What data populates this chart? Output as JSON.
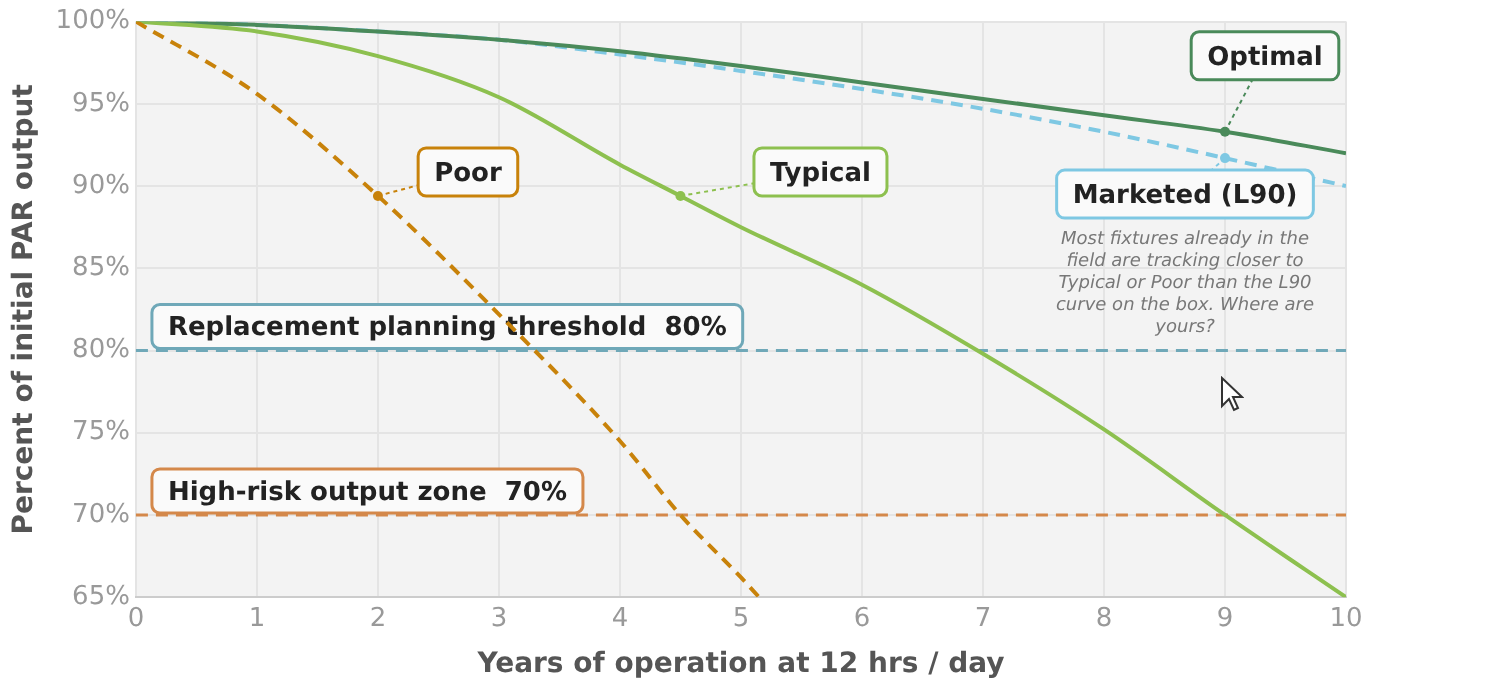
{
  "chart_data": {
    "type": "line",
    "xlabel": "Years of operation at 12 hrs / day",
    "ylabel": "Percent of initial PAR output",
    "xlim": [
      0,
      10
    ],
    "xticks": [
      0,
      1,
      2,
      3,
      4,
      5,
      6,
      7,
      8,
      9,
      10
    ],
    "ylim": [
      65,
      100
    ],
    "yticks": [
      {
        "value": 65,
        "label": "65%"
      },
      {
        "value": 70,
        "label": "70%"
      },
      {
        "value": 75,
        "label": "75%"
      },
      {
        "value": 80,
        "label": "80%"
      },
      {
        "value": 85,
        "label": "85%"
      },
      {
        "value": 90,
        "label": "90%"
      },
      {
        "value": 95,
        "label": "95%"
      },
      {
        "value": 100,
        "label": "100%"
      }
    ],
    "grid": true,
    "legend": false,
    "series": [
      {
        "color": "#c8820a",
        "line_style": "dashed",
        "x": [
          0,
          1,
          2,
          3,
          4,
          4.5,
          5,
          5.15
        ],
        "values": [
          100,
          95.6,
          89.4,
          82.2,
          74.5,
          70,
          66.2,
          65
        ]
      },
      {
        "color": "#8dc04f",
        "line_style": "solid",
        "x": [
          0,
          1,
          2,
          3,
          4,
          4.5,
          5,
          6,
          7,
          8,
          9,
          10
        ],
        "values": [
          100,
          99.4,
          97.9,
          95.4,
          91.3,
          89.4,
          87.5,
          84,
          79.8,
          75.2,
          70,
          65
        ]
      },
      {
        "color": "#4a8a5a",
        "line_style": "solid",
        "x": [
          0,
          1,
          2,
          3,
          4,
          5,
          6,
          7,
          8,
          9,
          10
        ],
        "values": [
          100,
          99.8,
          99.4,
          98.9,
          98.2,
          97.3,
          96.3,
          95.3,
          94.3,
          93.3,
          92
        ]
      },
      {
        "color": "#7ec8e3",
        "line_style": "dashed",
        "x": [
          0,
          1,
          2,
          3,
          4,
          5,
          6,
          7,
          8,
          9,
          10
        ],
        "values": [
          100,
          99.8,
          99.4,
          98.9,
          98,
          97,
          95.9,
          94.7,
          93.3,
          91.7,
          90
        ]
      }
    ],
    "annotations": [
      {
        "text": "Poor",
        "x": 2,
        "y": 89.4
      },
      {
        "text": "Typical",
        "x": 4.5,
        "y": 89.4
      },
      {
        "text": "Optimal",
        "x": 9,
        "y": 93.3
      },
      {
        "text": "Marketed (L90)",
        "x": 9,
        "y": 91.7
      },
      "Most fixtures already in the field are tracking closer to Typical or Poor than the L90 curve on the box. Where are yours?"
    ],
    "ref_lines": [
      {
        "axis": "y",
        "value": 80,
        "label": "Replacement planning threshold  80%",
        "color": "#6fa8b8",
        "line_style": "dashed"
      },
      {
        "axis": "y",
        "value": 70,
        "label": "High-risk output zone  70%",
        "color": "#d4884a",
        "line_style": "dashed"
      }
    ]
  }
}
